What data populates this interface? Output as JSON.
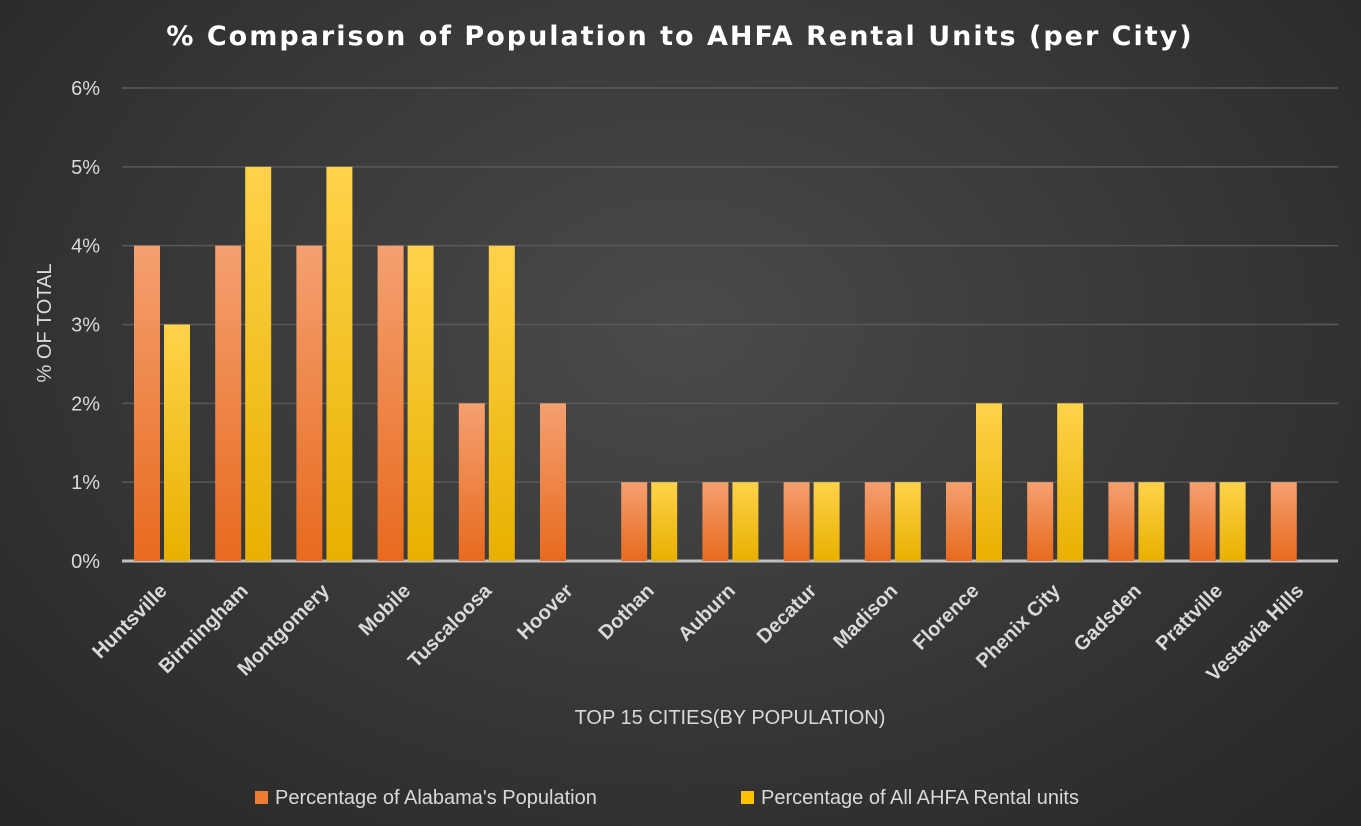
{
  "chart_data": {
    "type": "bar",
    "title": "% Comparison of Population to AHFA Rental Units (per City)",
    "xlabel": "TOP 15 CITIES(BY POPULATION)",
    "ylabel": "% OF TOTAL",
    "ylim": [
      0,
      6
    ],
    "yticks": [
      "0%",
      "1%",
      "2%",
      "3%",
      "4%",
      "5%",
      "6%"
    ],
    "grid": true,
    "legend_position": "bottom",
    "categories": [
      "Huntsville",
      "Birmingham",
      "Montgomery",
      "Mobile",
      "Tuscaloosa",
      "Hoover",
      "Dothan",
      "Auburn",
      "Decatur",
      "Madison",
      "Florence",
      "Phenix City",
      "Gadsden",
      "Prattville",
      "Vestavia Hills"
    ],
    "series": [
      {
        "name": "Percentage of Alabama's Population",
        "color": "#ED7D31",
        "values": [
          4,
          4,
          4,
          4,
          2,
          2,
          1,
          1,
          1,
          1,
          1,
          1,
          1,
          1,
          1
        ]
      },
      {
        "name": "Percentage of All AHFA Rental units",
        "color": "#FFC000",
        "values": [
          3,
          5,
          5,
          4,
          4,
          0,
          1,
          1,
          1,
          1,
          2,
          2,
          1,
          1,
          0
        ]
      }
    ]
  }
}
